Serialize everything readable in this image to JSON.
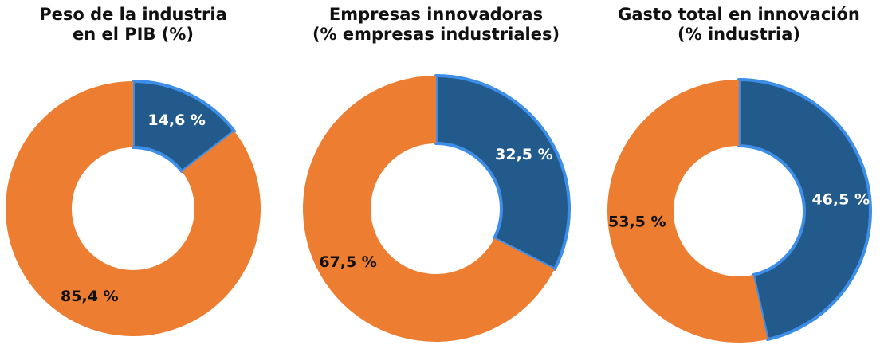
{
  "chart_data": [
    {
      "type": "pie",
      "title": "Peso de la industria\nen el PIB (%)",
      "values": [
        14.6,
        85.4
      ],
      "value_labels": [
        "14,6 %",
        "85,4 %"
      ],
      "colors": [
        "#235a8c",
        "#ed7d31"
      ],
      "label_colors": [
        "#ffffff",
        "#111111"
      ]
    },
    {
      "type": "pie",
      "title": "Empresas innovadoras\n(% empresas industriales)",
      "values": [
        32.5,
        67.5
      ],
      "value_labels": [
        "32,5 %",
        "67,5 %"
      ],
      "colors": [
        "#235a8c",
        "#ed7d31"
      ],
      "label_colors": [
        "#ffffff",
        "#111111"
      ]
    },
    {
      "type": "pie",
      "title": "Gasto total en innovación\n(% industria)",
      "values": [
        46.5,
        53.5
      ],
      "value_labels": [
        "46,5 %",
        "53,5 %"
      ],
      "colors": [
        "#235a8c",
        "#ed7d31"
      ],
      "label_colors": [
        "#ffffff",
        "#111111"
      ]
    }
  ]
}
